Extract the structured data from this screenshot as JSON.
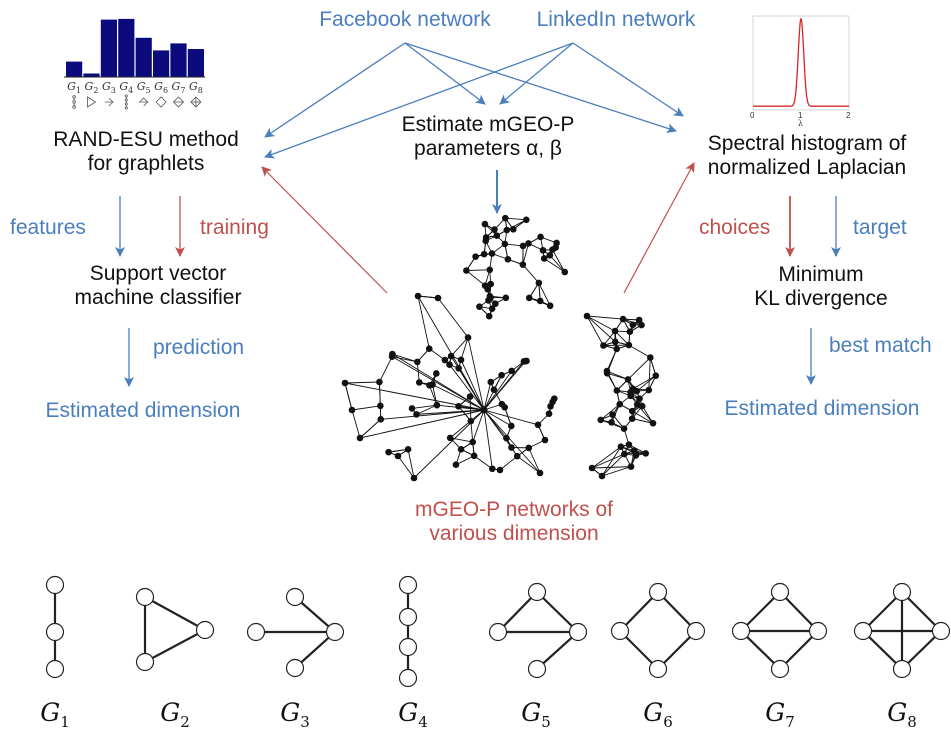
{
  "sources": {
    "facebook": "Facebook network",
    "linkedin": "LinkedIn network"
  },
  "left": {
    "method": [
      "RAND-ESU method",
      "for graphlets"
    ],
    "features": "features",
    "training": "training",
    "classifier": [
      "Support vector",
      "machine classifier"
    ],
    "prediction": "prediction",
    "result": "Estimated dimension"
  },
  "middle": {
    "estimate": [
      "Estimate mGEO-P",
      "parameters α, β"
    ],
    "networks": [
      "mGEO-P networks of",
      "various dimension"
    ]
  },
  "right": {
    "spectral": [
      "Spectral histogram of",
      "normalized Laplacian"
    ],
    "choices": "choices",
    "target": "target",
    "divergence": [
      "Minimum",
      "KL divergence"
    ],
    "best_match": "best match",
    "result": "Estimated dimension"
  },
  "histogram_inset": {
    "values": [
      0.22,
      0.05,
      0.82,
      0.83,
      0.56,
      0.38,
      0.48,
      0.4
    ],
    "bar_color": "#0b0b7d",
    "labels": [
      "G",
      "G",
      "G",
      "G",
      "G",
      "G",
      "G",
      "G"
    ],
    "subscripts": [
      "1",
      "2",
      "3",
      "4",
      "5",
      "6",
      "7",
      "8"
    ]
  },
  "spectrum_inset": {
    "tick_labels": [
      "0",
      "1",
      "2"
    ],
    "axis_label": "λ",
    "curve_color": "#d62728"
  },
  "graphlets": [
    {
      "letter": "G",
      "sub": "1"
    },
    {
      "letter": "G",
      "sub": "2"
    },
    {
      "letter": "G",
      "sub": "3"
    },
    {
      "letter": "G",
      "sub": "4"
    },
    {
      "letter": "G",
      "sub": "5"
    },
    {
      "letter": "G",
      "sub": "6"
    },
    {
      "letter": "G",
      "sub": "7"
    },
    {
      "letter": "G",
      "sub": "8"
    }
  ],
  "colors": {
    "blue": "#4a7ebd",
    "red": "#c0504d",
    "text": "#111111"
  }
}
